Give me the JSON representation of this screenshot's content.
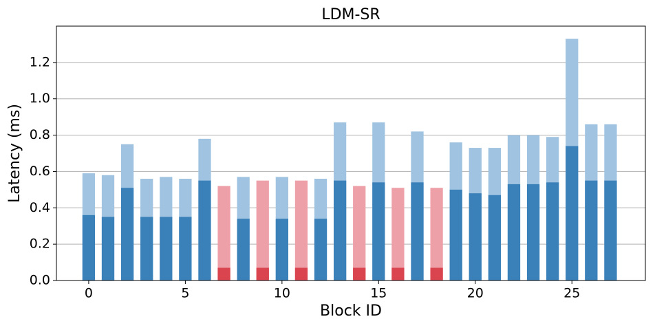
{
  "chart_data": {
    "type": "bar",
    "title": "LDM-SR",
    "x_label": "Block ID",
    "y_label": "Latency (ms)",
    "x": [
      0,
      1,
      2,
      3,
      4,
      5,
      6,
      7,
      8,
      9,
      10,
      11,
      12,
      13,
      14,
      15,
      16,
      17,
      18,
      19,
      20,
      21,
      22,
      23,
      24,
      25,
      26,
      27
    ],
    "series": [
      {
        "values": [
          0.59,
          0.58,
          0.75,
          0.56,
          0.57,
          0.56,
          0.78,
          0.52,
          0.57,
          0.55,
          0.57,
          0.55,
          0.56,
          0.87,
          0.52,
          0.87,
          0.51,
          0.82,
          0.51,
          0.76,
          0.73,
          0.73,
          0.8,
          0.8,
          0.79,
          1.33,
          0.86,
          0.86
        ],
        "colors": [
          "#9fc3e0",
          "#9fc3e0",
          "#9fc3e0",
          "#9fc3e0",
          "#9fc3e0",
          "#9fc3e0",
          "#9fc3e0",
          "#eea0a8",
          "#9fc3e0",
          "#eea0a8",
          "#9fc3e0",
          "#eea0a8",
          "#9fc3e0",
          "#9fc3e0",
          "#eea0a8",
          "#9fc3e0",
          "#eea0a8",
          "#9fc3e0",
          "#eea0a8",
          "#9fc3e0",
          "#9fc3e0",
          "#9fc3e0",
          "#9fc3e0",
          "#9fc3e0",
          "#9fc3e0",
          "#9fc3e0",
          "#9fc3e0",
          "#9fc3e0"
        ]
      },
      {
        "values": [
          0.36,
          0.35,
          0.51,
          0.35,
          0.35,
          0.35,
          0.55,
          0.07,
          0.34,
          0.07,
          0.34,
          0.07,
          0.34,
          0.55,
          0.07,
          0.54,
          0.07,
          0.54,
          0.07,
          0.5,
          0.48,
          0.47,
          0.53,
          0.53,
          0.54,
          0.74,
          0.55,
          0.55
        ],
        "colors": [
          "#3a80b9",
          "#3a80b9",
          "#3a80b9",
          "#3a80b9",
          "#3a80b9",
          "#3a80b9",
          "#3a80b9",
          "#d9444f",
          "#3a80b9",
          "#d9444f",
          "#3a80b9",
          "#d9444f",
          "#3a80b9",
          "#3a80b9",
          "#d9444f",
          "#3a80b9",
          "#d9444f",
          "#3a80b9",
          "#d9444f",
          "#3a80b9",
          "#3a80b9",
          "#3a80b9",
          "#3a80b9",
          "#3a80b9",
          "#3a80b9",
          "#3a80b9",
          "#3a80b9",
          "#3a80b9"
        ]
      }
    ],
    "xlim": [
      -1.67,
      28.8
    ],
    "xticks": [
      0,
      5,
      10,
      15,
      20,
      25
    ],
    "ylim": [
      0,
      1.4
    ],
    "yticks": [
      {
        "value": 0,
        "label": "0.0"
      },
      0.2,
      0.4,
      0.6,
      0.8,
      {
        "value": 1,
        "label": "1.0"
      },
      1.2
    ],
    "grid": true
  }
}
